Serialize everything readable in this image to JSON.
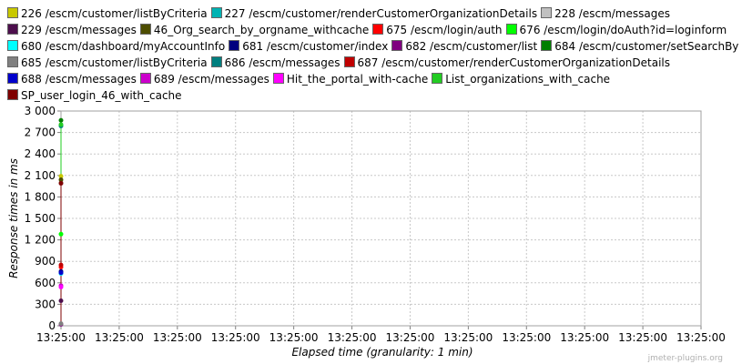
{
  "watermark": "jmeter-plugins.org",
  "chart_data": {
    "type": "line",
    "xlabel": "Elapsed time (granularity: 1 min)",
    "ylabel": "Response times in ms",
    "ylim": [
      0,
      3000
    ],
    "yticks": [
      "0",
      "300",
      "600",
      "900",
      "1 200",
      "1 500",
      "1 800",
      "2 100",
      "2 400",
      "2 700",
      "3 000"
    ],
    "xticks": [
      "13:25:00",
      "13:25:00",
      "13:25:00",
      "13:25:00",
      "13:25:00",
      "13:25:00",
      "13:25:00",
      "13:25:00",
      "13:25:00",
      "13:25:00",
      "13:25:00",
      "13:25:00"
    ],
    "grid": true,
    "legend_placement": "top",
    "x": [
      "13:25:00"
    ],
    "series": [
      {
        "name": "226 /escm/customer/listByCriteria",
        "color": "#c8c800",
        "values": [
          2090
        ]
      },
      {
        "name": "227 /escm/customer/renderCustomerOrganizationDetails",
        "color": "#00b3b3",
        "values": [
          2800
        ]
      },
      {
        "name": "228 /escm/messages",
        "color": "#c0c0c0",
        "values": [
          2000
        ]
      },
      {
        "name": "229 /escm/messages",
        "color": "#4d0f4d",
        "values": [
          350
        ]
      },
      {
        "name": "46_Org_search_by_orgname_withcache",
        "color": "#4d4d00",
        "values": [
          2040
        ]
      },
      {
        "name": "675 /escm/login/auth",
        "color": "#ff0000",
        "values": [
          820
        ]
      },
      {
        "name": "676 /escm/login/doAuth?id=loginform",
        "color": "#00ff00",
        "values": [
          1280
        ]
      },
      {
        "name": "680 /escm/dashboard/myAccountInfo",
        "color": "#00ffff",
        "values": [
          730
        ]
      },
      {
        "name": "681 /escm/customer/index",
        "color": "#00007f",
        "values": [
          760
        ]
      },
      {
        "name": "682 /escm/customer/list",
        "color": "#7f007f",
        "values": [
          20
        ]
      },
      {
        "name": "684 /escm/customer/setSearchBy",
        "color": "#007f00",
        "values": [
          2870
        ]
      },
      {
        "name": "685 /escm/customer/listByCriteria",
        "color": "#808080",
        "values": [
          30
        ]
      },
      {
        "name": "686 /escm/messages",
        "color": "#007f7f",
        "values": [
          2790
        ]
      },
      {
        "name": "687 /escm/customer/renderCustomerOrganizationDetails",
        "color": "#c00000",
        "values": [
          850
        ]
      },
      {
        "name": "688 /escm/messages",
        "color": "#0000cc",
        "values": [
          740
        ]
      },
      {
        "name": "689 /escm/messages",
        "color": "#cc00cc",
        "values": [
          560
        ]
      },
      {
        "name": "Hit_the_portal_with-cache",
        "color": "#ff00ff",
        "values": [
          540
        ]
      },
      {
        "name": "List_organizations_with_cache",
        "color": "#22cc22",
        "values": [
          2810
        ]
      },
      {
        "name": "SP_user_login_46_with_cache",
        "color": "#7f0000",
        "values": [
          1990
        ]
      }
    ]
  }
}
